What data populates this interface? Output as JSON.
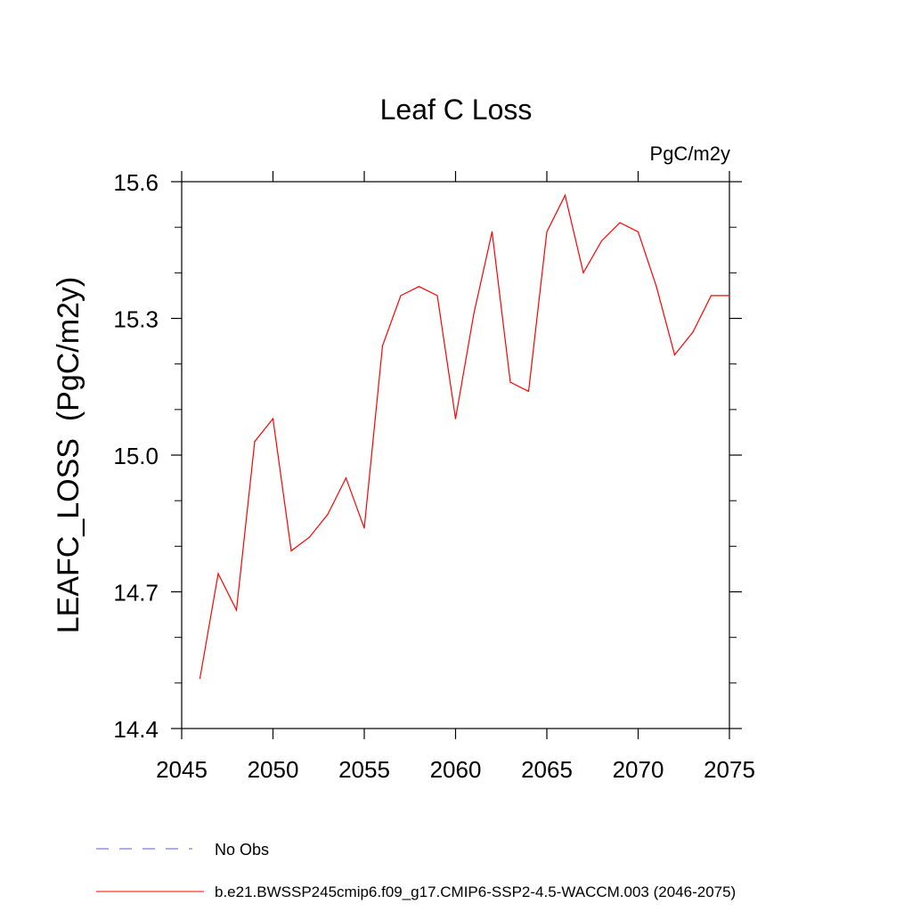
{
  "chart_data": {
    "type": "line",
    "title": "Leaf C Loss",
    "units_label": "PgC/m2y",
    "xlabel": "",
    "ylabel": "LEAFC_LOSS  (PgC/m2y)",
    "xlim": [
      2045,
      2075
    ],
    "ylim": [
      14.4,
      15.6
    ],
    "x_ticks": [
      "2045",
      "2050",
      "2055",
      "2060",
      "2065",
      "2070",
      "2075"
    ],
    "y_ticks": [
      "14.4",
      "14.7",
      "15.0",
      "15.3",
      "15.6"
    ],
    "x_tick_values": [
      2045,
      2050,
      2055,
      2060,
      2065,
      2070,
      2075
    ],
    "y_tick_values": [
      14.4,
      14.7,
      15.0,
      15.3,
      15.6
    ],
    "y_minor_tick_values": [
      14.5,
      14.6,
      14.8,
      14.9,
      15.1,
      15.2,
      15.4,
      15.5
    ],
    "grid": false,
    "series": [
      {
        "name": "b.e21.BWSSP245cmip6.f09_g17.CMIP6-SSP2-4.5-WACCM.003 (2046-2075)",
        "color": "#ff0000",
        "style": "solid",
        "x": [
          2046,
          2047,
          2048,
          2049,
          2050,
          2051,
          2052,
          2053,
          2054,
          2055,
          2056,
          2057,
          2058,
          2059,
          2060,
          2061,
          2062,
          2063,
          2064,
          2065,
          2066,
          2067,
          2068,
          2069,
          2070,
          2071,
          2072,
          2073,
          2074,
          2075
        ],
        "values": [
          14.51,
          14.74,
          14.66,
          15.03,
          15.08,
          14.79,
          14.82,
          14.87,
          14.95,
          14.84,
          15.24,
          15.35,
          15.37,
          15.35,
          15.08,
          15.31,
          15.49,
          15.16,
          15.14,
          15.49,
          15.57,
          15.4,
          15.47,
          15.51,
          15.49,
          15.37,
          15.22,
          15.27,
          15.35,
          15.35
        ]
      }
    ],
    "legend": [
      {
        "label": "No Obs",
        "color": "#5a5acd",
        "style": "dashed"
      },
      {
        "label": "b.e21.BWSSP245cmip6.f09_g17.CMIP6-SSP2-4.5-WACCM.003 (2046-2075)",
        "color": "#ff0000",
        "style": "solid"
      }
    ],
    "legend_position": "bottom-left"
  }
}
